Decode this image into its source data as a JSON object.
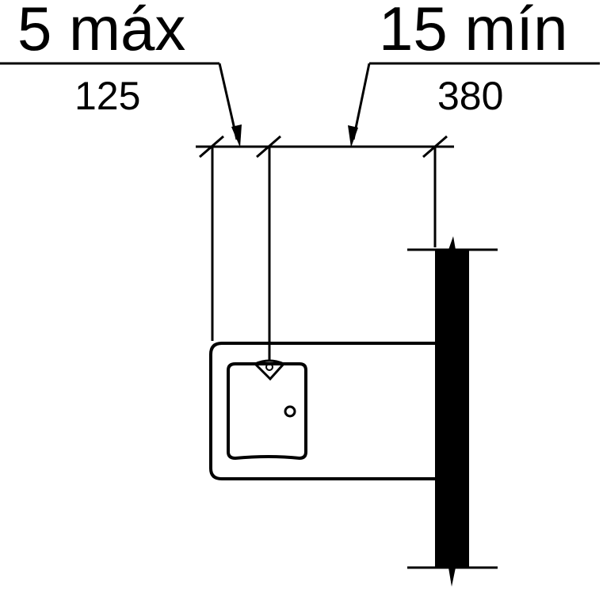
{
  "labels": {
    "left_primary": "5 máx",
    "left_secondary": "125",
    "right_primary": "15 mín",
    "right_secondary": "380"
  }
}
